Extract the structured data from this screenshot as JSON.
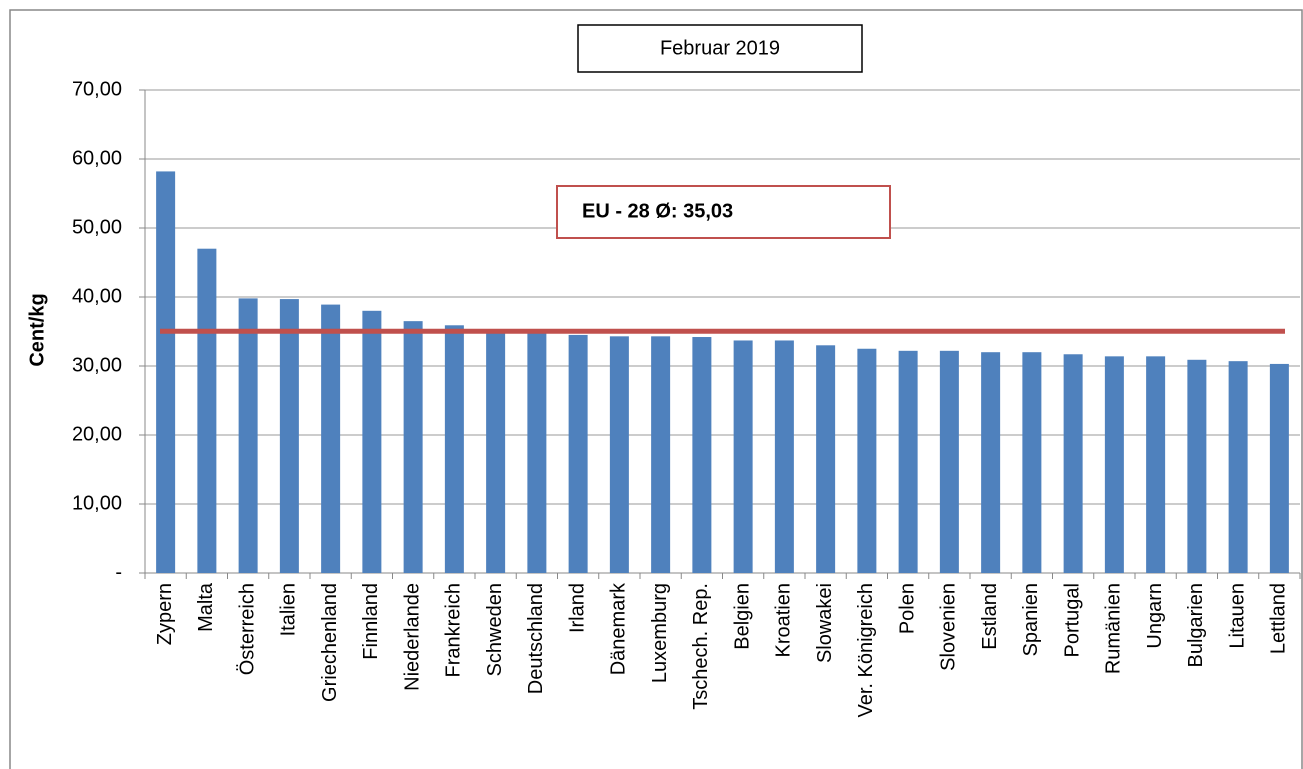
{
  "chart_data": {
    "type": "bar",
    "subtitle": "Februar 2019",
    "y_label": "Cent/kg",
    "annotation": "EU - 28 Ø: 35,03",
    "average": 35.03,
    "average_color": "#c0504d",
    "color": "#4f81bd",
    "grid": true,
    "categories": [
      "Zypern",
      "Malta",
      "Österreich",
      "Italien",
      "Griechenland",
      "Finnland",
      "Niederlande",
      "Frankreich",
      "Schweden",
      "Deutschland",
      "Irland",
      "Dänemark",
      "Luxemburg",
      "Tschech. Rep.",
      "Belgien",
      "Kroatien",
      "Slowakei",
      "Ver. Königreich",
      "Polen",
      "Slovenien",
      "Estland",
      "Spanien",
      "Portugal",
      "Rumänien",
      "Ungarn",
      "Bulgarien",
      "Litauen",
      "Lettland"
    ],
    "values": [
      58.2,
      47.0,
      39.8,
      39.7,
      38.9,
      38.0,
      36.5,
      35.9,
      35.2,
      35.0,
      34.5,
      34.3,
      34.3,
      34.2,
      33.7,
      33.7,
      33.0,
      32.5,
      32.2,
      32.2,
      32.0,
      32.0,
      31.7,
      31.4,
      31.4,
      30.9,
      30.7,
      30.3
    ],
    "ylim": [
      0,
      70
    ],
    "yticks": [
      {
        "value": 0,
        "label": "-"
      },
      {
        "value": 10,
        "label": "10,00"
      },
      {
        "value": 20,
        "label": "20,00"
      },
      {
        "value": 30,
        "label": "30,00"
      },
      {
        "value": 40,
        "label": "40,00"
      },
      {
        "value": 50,
        "label": "50,00"
      },
      {
        "value": 60,
        "label": "60,00"
      },
      {
        "value": 70,
        "label": "70,00"
      }
    ]
  }
}
